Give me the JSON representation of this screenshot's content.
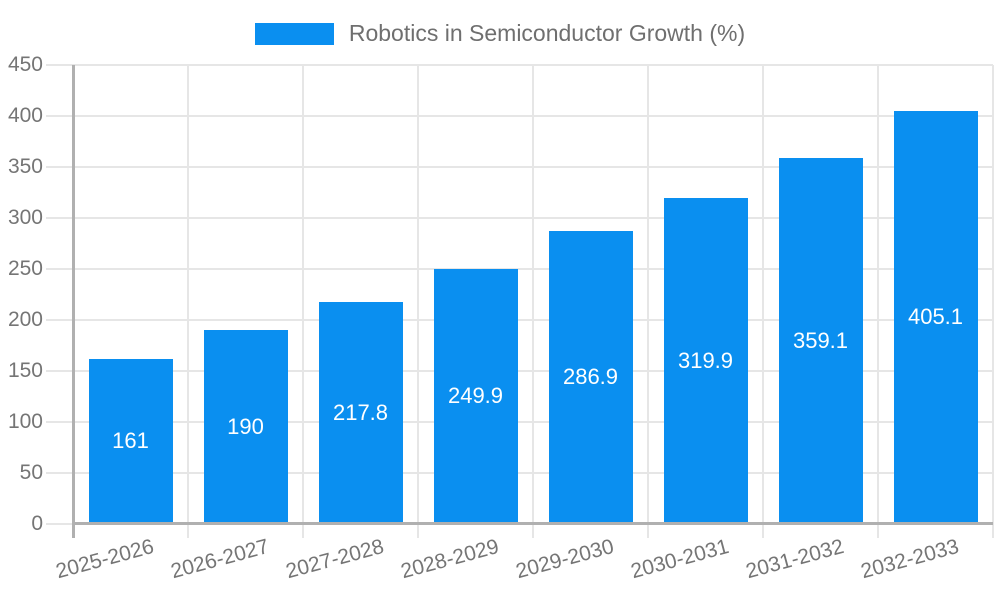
{
  "legend": {
    "label": "Robotics in Semiconductor Growth (%)"
  },
  "chart_data": {
    "type": "bar",
    "title": "Robotics in Semiconductor Growth (%)",
    "series_name": "Robotics in Semiconductor Growth (%)",
    "categories": [
      "2025-2026",
      "2026-2027",
      "2027-2028",
      "2028-2029",
      "2029-2030",
      "2030-2031",
      "2031-2032",
      "2032-2033"
    ],
    "values": [
      161,
      190,
      217.8,
      249.9,
      286.9,
      319.9,
      359.1,
      405.1
    ],
    "value_labels": [
      "161",
      "190",
      "217.8",
      "249.9",
      "286.9",
      "319.9",
      "359.1",
      "405.1"
    ],
    "xlabel": "",
    "ylabel": "",
    "ylim": [
      0,
      450
    ],
    "yticks": [
      0,
      50,
      100,
      150,
      200,
      250,
      300,
      350,
      400,
      450
    ],
    "grid": true,
    "legend_position": "top",
    "colors": {
      "bar": "#0a8ff0",
      "value_label": "#ffffff",
      "axis_text": "#757575",
      "legend_text": "#6f6f6f",
      "gridline": "#e6e6e6",
      "axis_line": "#b0b0b0",
      "background": "#ffffff"
    }
  }
}
